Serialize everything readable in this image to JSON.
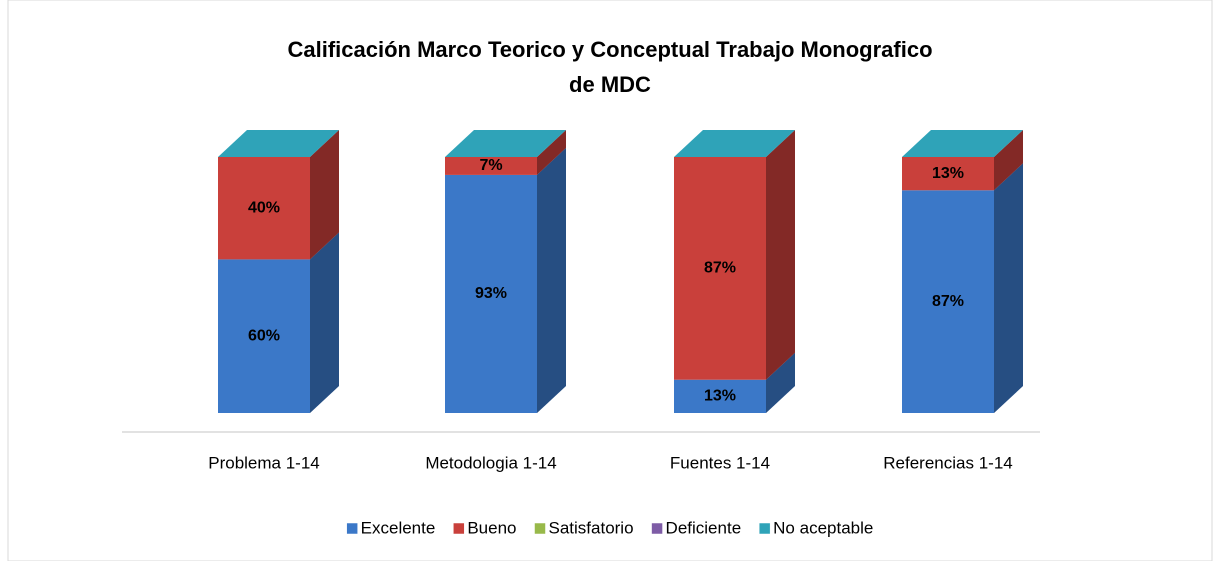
{
  "chart_data": {
    "type": "bar3d_stacked",
    "title": "Calificación Marco Teorico y Conceptual Trabajo Monografico",
    "title_line2": "de MDC",
    "categories": [
      "Problema 1-14",
      "Metodologia 1-14",
      "Fuentes 1-14",
      "Referencias 1-14"
    ],
    "ylim": [
      0,
      100
    ],
    "series": [
      {
        "name": "Excelente",
        "color": "#3b78c8",
        "values": [
          60,
          93,
          13,
          87
        ],
        "value_labels": [
          "60%",
          "93%",
          "13%",
          "87%"
        ]
      },
      {
        "name": "Bueno",
        "color": "#c9403b",
        "values": [
          40,
          7,
          87,
          13
        ],
        "value_labels": [
          "40%",
          "7%",
          "87%",
          "13%"
        ]
      },
      {
        "name": "Satisfatorio",
        "color": "#98b94a",
        "values": [
          0,
          0,
          0,
          0
        ]
      },
      {
        "name": "Deficiente",
        "color": "#7e5ca6",
        "values": [
          0,
          0,
          0,
          0
        ]
      },
      {
        "name": "No aceptable",
        "color": "#2fa3b8",
        "values": [
          0,
          0,
          0,
          0
        ]
      }
    ],
    "legend": "bottom"
  }
}
